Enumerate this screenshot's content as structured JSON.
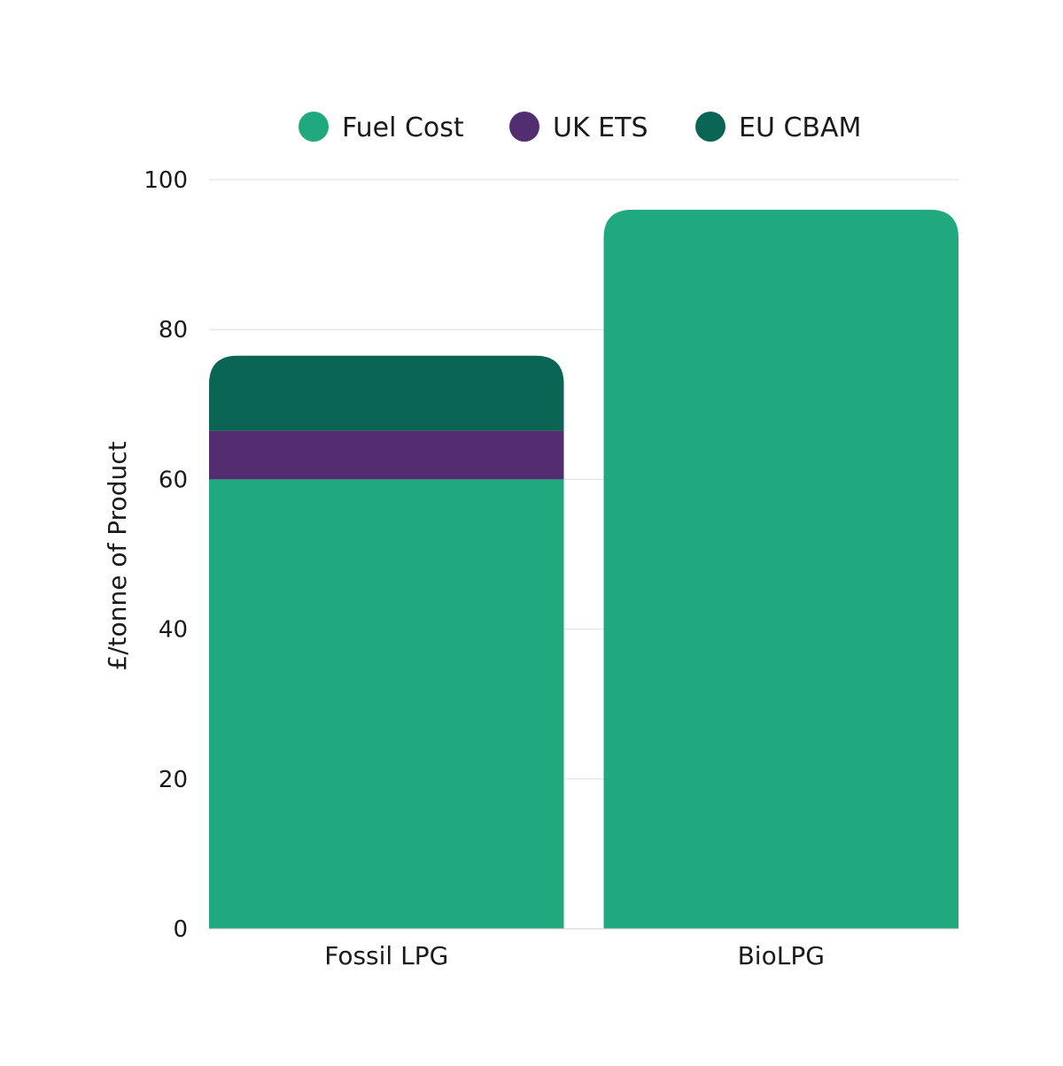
{
  "chart_data": {
    "type": "bar",
    "stacked": true,
    "categories": [
      "Fossil LPG",
      "BioLPG"
    ],
    "series": [
      {
        "name": "Fuel Cost",
        "color": "#20a97e",
        "values": [
          60,
          96
        ]
      },
      {
        "name": "UK ETS",
        "color": "#522d6f",
        "values": [
          6.5,
          0
        ]
      },
      {
        "name": "EU CBAM",
        "color": "#0b6554",
        "values": [
          10,
          0
        ]
      }
    ],
    "title": "",
    "xlabel": "",
    "ylabel": "£/tonne of Product",
    "ylim": [
      0,
      100
    ],
    "yticks": [
      0,
      20,
      40,
      60,
      80,
      100
    ],
    "grid": true,
    "legend": "top-center"
  }
}
